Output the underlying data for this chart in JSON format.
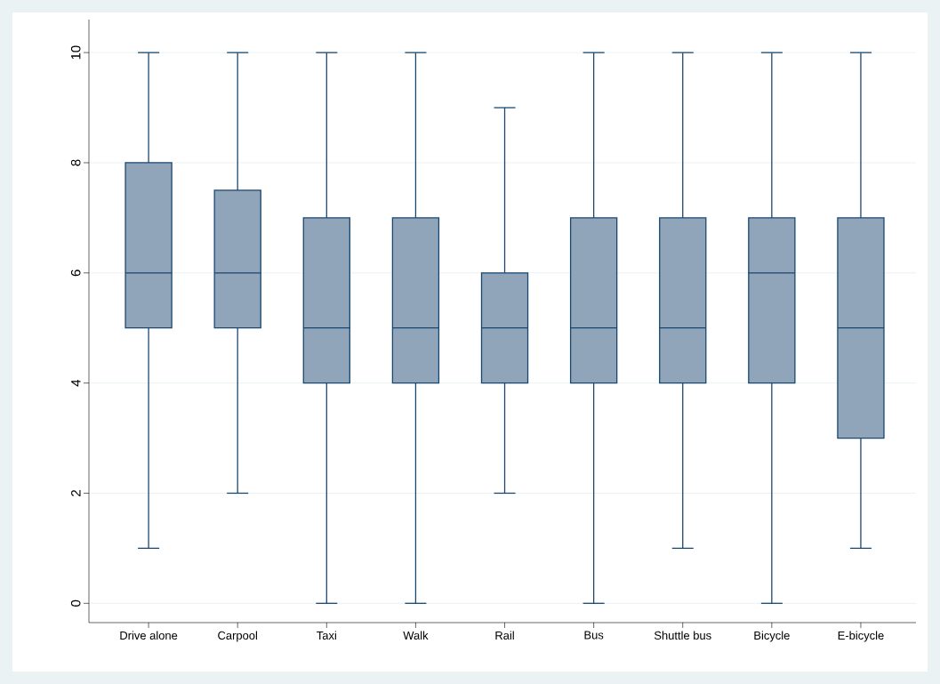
{
  "chart_data": {
    "type": "box",
    "categories": [
      "Drive alone",
      "Carpool",
      "Taxi",
      "Walk",
      "Rail",
      "Bus",
      "Shuttle bus",
      "Bicycle",
      "E-bicycle"
    ],
    "boxes": [
      {
        "low": 1,
        "q1": 5,
        "median": 6,
        "q3": 8,
        "high": 10
      },
      {
        "low": 2,
        "q1": 5,
        "median": 6,
        "q3": 7.5,
        "high": 10
      },
      {
        "low": 0,
        "q1": 4,
        "median": 5,
        "q3": 7,
        "high": 10
      },
      {
        "low": 0,
        "q1": 4,
        "median": 5,
        "q3": 7,
        "high": 10
      },
      {
        "low": 2,
        "q1": 4,
        "median": 5,
        "q3": 6,
        "high": 9
      },
      {
        "low": 0,
        "q1": 4,
        "median": 5,
        "q3": 7,
        "high": 10
      },
      {
        "low": 1,
        "q1": 4,
        "median": 5,
        "q3": 7,
        "high": 10
      },
      {
        "low": 0,
        "q1": 4,
        "median": 6,
        "q3": 7,
        "high": 10
      },
      {
        "low": 1,
        "q1": 3,
        "median": 5,
        "q3": 7,
        "high": 10
      }
    ],
    "color": "#90a4ba",
    "ylim": [
      -0.35,
      10.6
    ],
    "yticks": [
      0,
      2,
      4,
      6,
      8,
      10
    ],
    "grid": "y"
  }
}
